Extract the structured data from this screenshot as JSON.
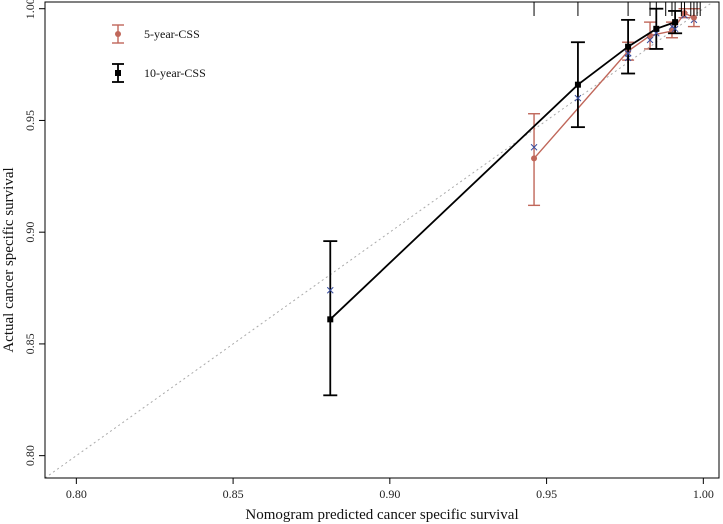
{
  "chart_data": {
    "type": "line",
    "xlabel": "Nomogram predicted cancer specific survival",
    "ylabel": "Actual cancer specific survival",
    "xlim": [
      0.79,
      1.005
    ],
    "ylim": [
      0.79,
      1.003
    ],
    "x_ticks": [
      {
        "value": 0.8,
        "label": "0.80"
      },
      {
        "value": 0.85,
        "label": "0.85"
      },
      {
        "value": 0.9,
        "label": "0.90"
      },
      {
        "value": 0.95,
        "label": "0.95"
      },
      {
        "value": 1.0,
        "label": "1.00"
      }
    ],
    "y_ticks": [
      {
        "value": 0.8,
        "label": "0.80"
      },
      {
        "value": 0.85,
        "label": "0.85"
      },
      {
        "value": 0.9,
        "label": "0.90"
      },
      {
        "value": 0.95,
        "label": "0.95"
      },
      {
        "value": 1.0,
        "label": "1.00"
      }
    ],
    "reference_line": {
      "style": "dotted",
      "color": "#aaaaaa"
    },
    "legend_position": "top-left",
    "series": [
      {
        "name": "5-year-CSS",
        "color": "#c0675a",
        "marker": "circle",
        "points": [
          {
            "x": 0.946,
            "y": 0.933,
            "lo": 0.912,
            "hi": 0.953,
            "ox": 0.946,
            "oy": 0.938
          },
          {
            "x": 0.976,
            "y": 0.981,
            "lo": 0.977,
            "hi": 0.985,
            "ox": 0.976,
            "oy": 0.978
          },
          {
            "x": 0.983,
            "y": 0.988,
            "lo": 0.982,
            "hi": 0.994,
            "ox": 0.983,
            "oy": 0.986
          },
          {
            "x": 0.99,
            "y": 0.99,
            "lo": 0.987,
            "hi": 0.994,
            "ox": 0.99,
            "oy": 0.992
          },
          {
            "x": 0.994,
            "y": 0.998,
            "lo": 0.996,
            "hi": 1.0,
            "ox": 0.994,
            "oy": 0.997
          },
          {
            "x": 0.997,
            "y": 0.996,
            "lo": 0.992,
            "hi": 1.0,
            "ox": 0.997,
            "oy": 0.995
          }
        ]
      },
      {
        "name": "10-year-CSS",
        "color": "#000000",
        "marker": "square",
        "points": [
          {
            "x": 0.881,
            "y": 0.861,
            "lo": 0.827,
            "hi": 0.896,
            "ox": 0.881,
            "oy": 0.874
          },
          {
            "x": 0.96,
            "y": 0.966,
            "lo": 0.947,
            "hi": 0.985,
            "ox": 0.96,
            "oy": 0.96
          },
          {
            "x": 0.976,
            "y": 0.983,
            "lo": 0.971,
            "hi": 0.995,
            "ox": 0.976,
            "oy": 0.98
          },
          {
            "x": 0.985,
            "y": 0.991,
            "lo": 0.982,
            "hi": 1.0,
            "ox": 0.985,
            "oy": 0.989
          },
          {
            "x": 0.991,
            "y": 0.994,
            "lo": 0.989,
            "hi": 0.999,
            "ox": 0.991,
            "oy": 0.991
          }
        ]
      }
    ],
    "rug_x": [
      0.946,
      0.96,
      0.976,
      0.983,
      0.985,
      0.988,
      0.99,
      0.991,
      0.993,
      0.994,
      0.996,
      0.997,
      0.998,
      0.999
    ]
  }
}
